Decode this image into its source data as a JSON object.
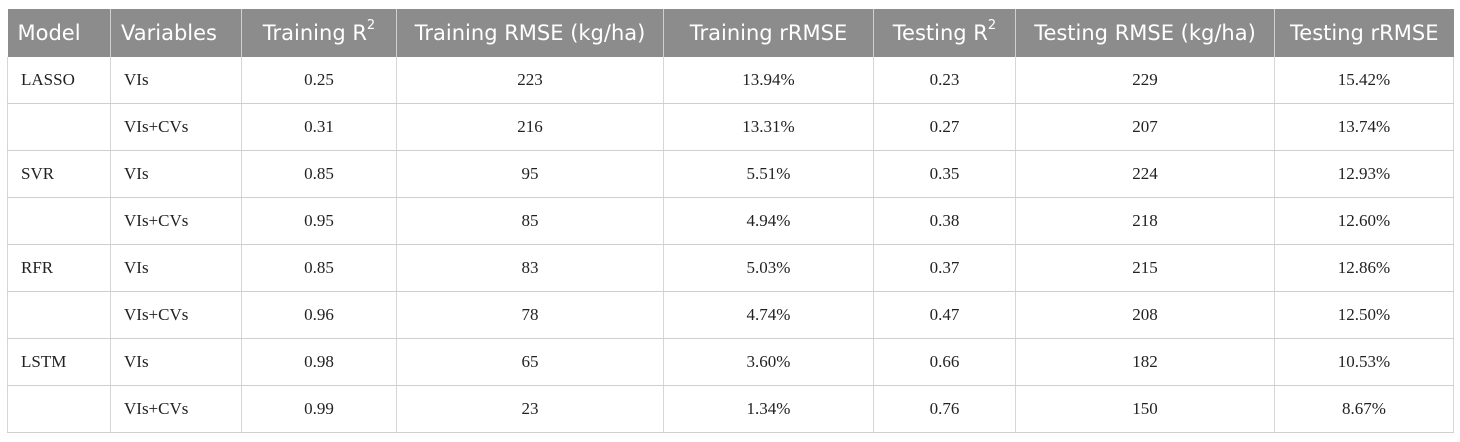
{
  "table": {
    "headers": [
      {
        "text": "Model",
        "sup": ""
      },
      {
        "text": "Variables",
        "sup": ""
      },
      {
        "text": "Training R",
        "sup": "2"
      },
      {
        "text": "Training RMSE (kg/ha)",
        "sup": ""
      },
      {
        "text": "Training rRMSE",
        "sup": ""
      },
      {
        "text": "Testing R",
        "sup": "2"
      },
      {
        "text": "Testing RMSE (kg/ha)",
        "sup": ""
      },
      {
        "text": "Testing rRMSE",
        "sup": ""
      }
    ],
    "rows": [
      [
        "LASSO",
        "VIs",
        "0.25",
        "223",
        "13.94%",
        "0.23",
        "229",
        "15.42%"
      ],
      [
        "",
        "VIs+CVs",
        "0.31",
        "216",
        "13.31%",
        "0.27",
        "207",
        "13.74%"
      ],
      [
        "SVR",
        "VIs",
        "0.85",
        "95",
        "5.51%",
        "0.35",
        "224",
        "12.93%"
      ],
      [
        "",
        "VIs+CVs",
        "0.95",
        "85",
        "4.94%",
        "0.38",
        "218",
        "12.60%"
      ],
      [
        "RFR",
        "VIs",
        "0.85",
        "83",
        "5.03%",
        "0.37",
        "215",
        "12.86%"
      ],
      [
        "",
        "VIs+CVs",
        "0.96",
        "78",
        "4.74%",
        "0.47",
        "208",
        "12.50%"
      ],
      [
        "LSTM",
        "VIs",
        "0.98",
        "65",
        "3.60%",
        "0.66",
        "182",
        "10.53%"
      ],
      [
        "",
        "VIs+CVs",
        "0.99",
        "23",
        "1.34%",
        "0.76",
        "150",
        "8.67%"
      ]
    ]
  }
}
